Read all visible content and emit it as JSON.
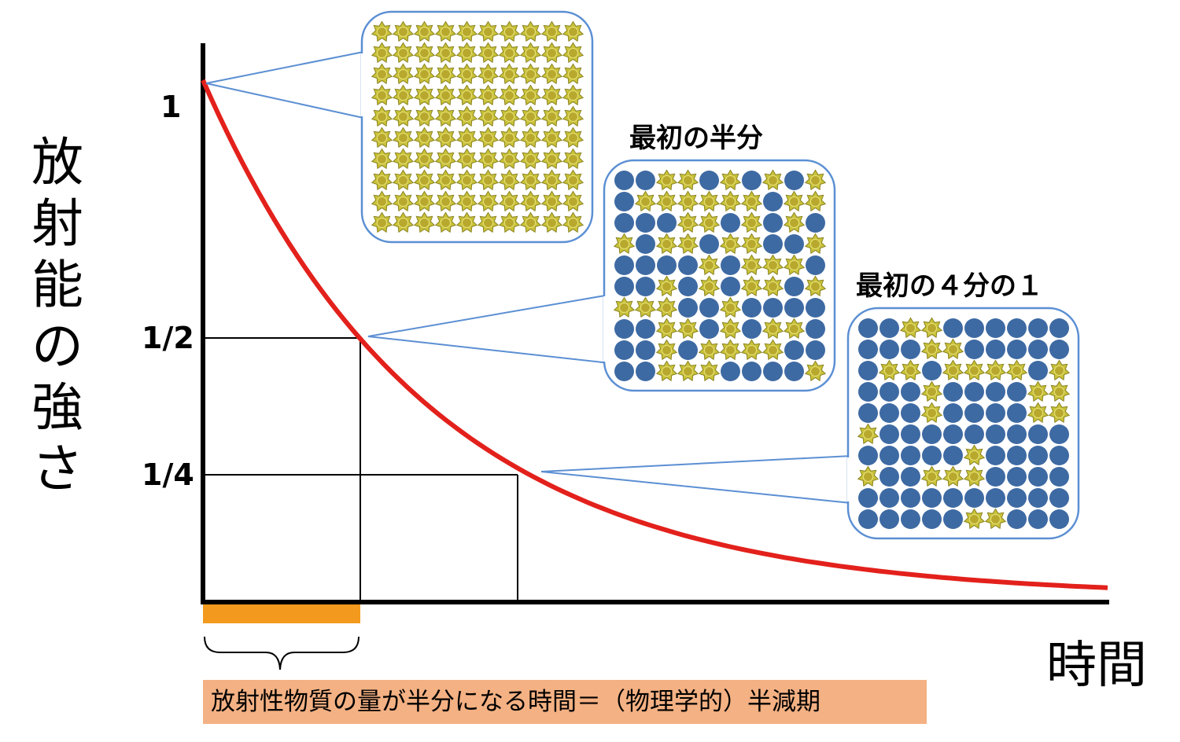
{
  "y_axis_label_chars": [
    "放",
    "射",
    "能",
    "の",
    "強",
    "さ"
  ],
  "x_axis_label": "時間",
  "ticks": {
    "one": "1",
    "half": "1/2",
    "quarter": "1/4"
  },
  "panels": {
    "initial": {
      "grid": 10,
      "active_fraction": 1
    },
    "half": {
      "title": "最初の半分",
      "grid": 10,
      "active_fraction": 0.5
    },
    "quarter": {
      "title": "最初の４分の１",
      "grid": 10,
      "active_fraction": 0.25
    }
  },
  "caption": "放射性物質の量が半分になる時間＝（物理学的）半減期",
  "colors": {
    "curve": "#e3211c",
    "callout": "#5b8fd3",
    "decayed_atom": "#3e6aa3",
    "active_atom": "#c9c23a",
    "half_life_bar": "#f39a1e",
    "caption_bg": "#f4b183"
  },
  "chart_data": {
    "type": "line",
    "series": [
      {
        "values_description": "",
        "x": [
          0,
          0.5,
          1,
          1.5,
          2,
          2.5,
          3,
          3.5,
          4,
          4.5,
          5,
          5.75
        ],
        "y": [
          1,
          0.7071,
          0.5,
          0.3536,
          0.25,
          0.1768,
          0.125,
          0.0884,
          0.0625,
          0.0442,
          0.0313,
          0.0186
        ]
      }
    ],
    "yticks": [
      "1/4",
      "1/2",
      "1"
    ],
    "ylabel": "放射能の強さ",
    "xlabel": "時間"
  }
}
